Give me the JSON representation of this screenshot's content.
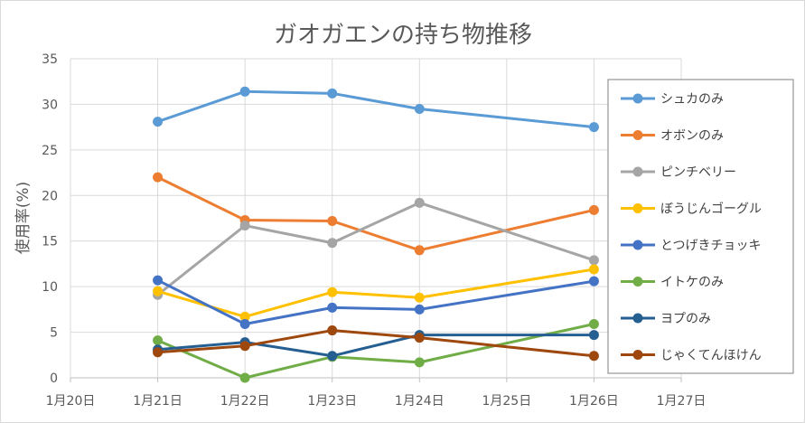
{
  "chart_data": {
    "type": "line",
    "title": "ガオガエンの持ち物推移",
    "ylabel": "使用率(%)",
    "xlabel": "",
    "ylim": [
      0,
      35
    ],
    "yticks": [
      0,
      5,
      10,
      15,
      20,
      25,
      30,
      35
    ],
    "x_ticks": [
      "1月20日",
      "1月21日",
      "1月22日",
      "1月23日",
      "1月24日",
      "1月25日",
      "1月26日",
      "1月27日"
    ],
    "x": [
      "1月21日",
      "1月22日",
      "1月23日",
      "1月24日",
      "1月26日"
    ],
    "grid": true,
    "legend_position": "right",
    "series": [
      {
        "name": "シュカのみ",
        "color": "#5b9bd5",
        "values": [
          28.1,
          31.4,
          31.2,
          29.5,
          27.5
        ]
      },
      {
        "name": "オボンのみ",
        "color": "#ed7d31",
        "values": [
          22.0,
          17.3,
          17.2,
          14.0,
          18.4
        ]
      },
      {
        "name": "ピンチベリー",
        "color": "#a5a5a5",
        "values": [
          9.1,
          16.7,
          14.8,
          19.2,
          12.9
        ]
      },
      {
        "name": "ぼうじんゴーグル",
        "color": "#ffc000",
        "values": [
          9.5,
          6.7,
          9.4,
          8.8,
          11.9
        ]
      },
      {
        "name": "とつげきチョッキ",
        "color": "#4472c4",
        "values": [
          10.7,
          5.9,
          7.7,
          7.5,
          10.6
        ]
      },
      {
        "name": "イトケのみ",
        "color": "#70ad47",
        "values": [
          4.1,
          0.0,
          2.3,
          1.7,
          5.9
        ]
      },
      {
        "name": "ヨプのみ",
        "color": "#255e91",
        "values": [
          3.1,
          3.9,
          2.4,
          4.7,
          4.7
        ]
      },
      {
        "name": "じゃくてんほけん",
        "color": "#9e480e",
        "values": [
          2.8,
          3.5,
          5.2,
          4.4,
          2.4
        ]
      }
    ]
  }
}
